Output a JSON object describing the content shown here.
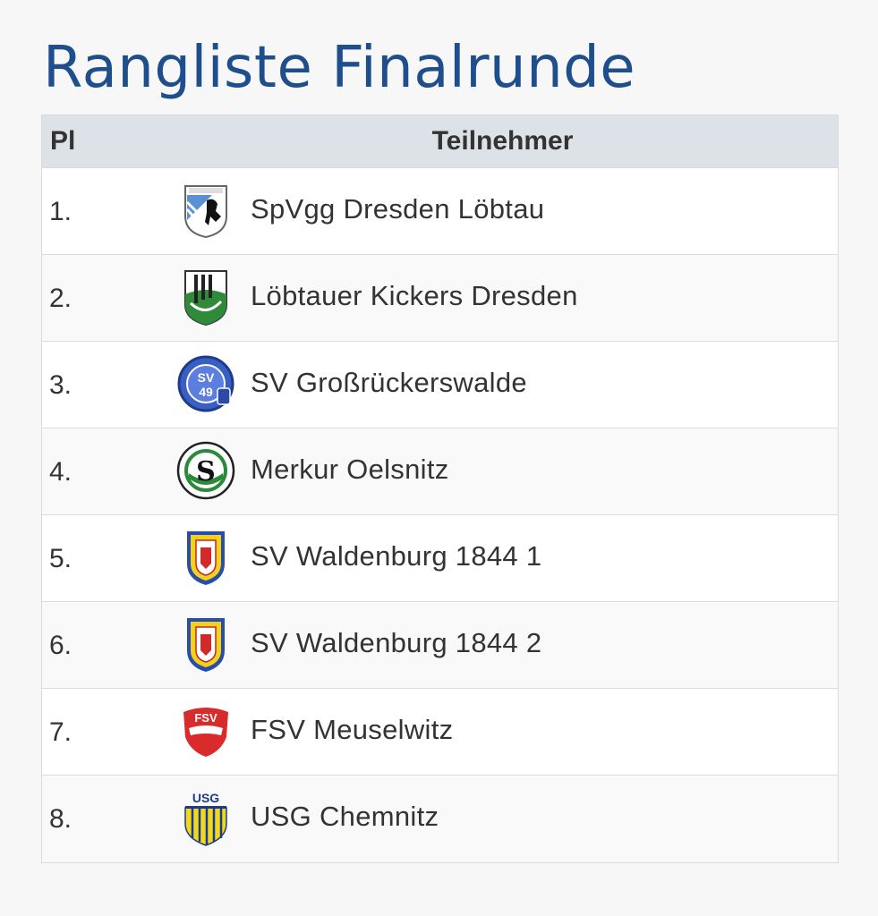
{
  "page": {
    "title": "Rangliste Finalrunde"
  },
  "table": {
    "headers": {
      "rank": "Pl",
      "team": "Teilnehmer"
    },
    "rows": [
      {
        "rank": "1.",
        "team": "SpVgg Dresden Löbtau",
        "crest_icon": "spvgg-dresden-loebtau-crest-icon"
      },
      {
        "rank": "2.",
        "team": "Löbtauer Kickers Dresden",
        "crest_icon": "loebtauer-kickers-crest-icon"
      },
      {
        "rank": "3.",
        "team": "SV Großrückerswalde",
        "crest_icon": "sv-grossrueckerswalde-crest-icon",
        "crest_text": [
          "SV",
          "49"
        ]
      },
      {
        "rank": "4.",
        "team": "Merkur Oelsnitz",
        "crest_icon": "merkur-oelsnitz-crest-icon",
        "crest_text": [
          "S"
        ]
      },
      {
        "rank": "5.",
        "team": "SV Waldenburg 1844 1",
        "crest_icon": "sv-waldenburg-crest-icon"
      },
      {
        "rank": "6.",
        "team": "SV Waldenburg 1844 2",
        "crest_icon": "sv-waldenburg-crest-icon"
      },
      {
        "rank": "7.",
        "team": "FSV Meuselwitz",
        "crest_icon": "fsv-meuselwitz-crest-icon",
        "crest_text": [
          "FSV"
        ]
      },
      {
        "rank": "8.",
        "team": "USG Chemnitz",
        "crest_icon": "usg-chemnitz-crest-icon",
        "crest_text": [
          "USG"
        ]
      }
    ]
  },
  "colors": {
    "title": "#1f4e8c",
    "header_bg": "#dde2e8",
    "text": "#333333"
  }
}
